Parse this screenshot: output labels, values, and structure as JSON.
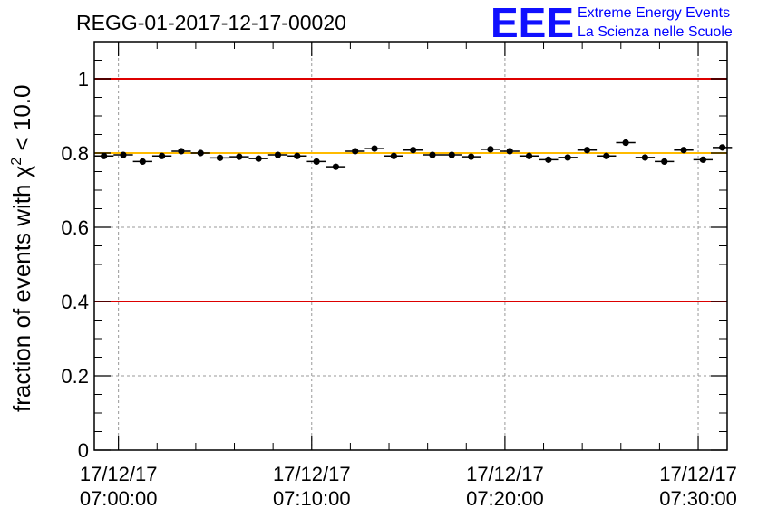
{
  "chart_data": {
    "type": "scatter",
    "title": "REGG-01-2017-12-17-00020",
    "xlabel": "",
    "ylabel_prefix": "fraction of events with ",
    "ylabel_symbol": "χ",
    "ylabel_superscript": "2",
    "ylabel_suffix": " < 10.0",
    "ylim": [
      0,
      1.1
    ],
    "xlim_minutes": [
      -1.25,
      31.5
    ],
    "yticks": [
      {
        "value": 0,
        "label": "0"
      },
      {
        "value": 0.2,
        "label": "0.2"
      },
      {
        "value": 0.4,
        "label": "0.4"
      },
      {
        "value": 0.6,
        "label": "0.6"
      },
      {
        "value": 0.8,
        "label": "0.8"
      },
      {
        "value": 1,
        "label": "1"
      }
    ],
    "xticks": [
      {
        "minute": 0,
        "date": "17/12/17",
        "time": "07:00:00"
      },
      {
        "minute": 10,
        "date": "17/12/17",
        "time": "07:10:00"
      },
      {
        "minute": 20,
        "date": "17/12/17",
        "time": "07:20:00"
      },
      {
        "minute": 30,
        "date": "17/12/17",
        "time": "07:30:00"
      }
    ],
    "grid": true,
    "reference_lines": [
      {
        "value": 1.0,
        "color": "#dd0000"
      },
      {
        "value": 0.4,
        "color": "#dd0000"
      },
      {
        "value": 0.8,
        "color": "#ffbb00"
      }
    ],
    "bin_width_minutes": 1,
    "series": [
      {
        "name": "fraction",
        "x_minutes": [
          -0.75,
          0.25,
          1.25,
          2.25,
          3.25,
          4.25,
          5.25,
          6.25,
          7.25,
          8.25,
          9.25,
          10.25,
          11.25,
          12.25,
          13.25,
          14.25,
          15.25,
          16.25,
          17.25,
          18.25,
          19.25,
          20.25,
          21.25,
          22.25,
          23.25,
          24.25,
          25.25,
          26.25,
          27.25,
          28.25,
          29.25,
          30.25,
          31.25
        ],
        "values": [
          0.792,
          0.795,
          0.777,
          0.792,
          0.805,
          0.8,
          0.787,
          0.79,
          0.785,
          0.795,
          0.792,
          0.777,
          0.763,
          0.805,
          0.812,
          0.792,
          0.808,
          0.795,
          0.795,
          0.79,
          0.81,
          0.805,
          0.792,
          0.782,
          0.788,
          0.808,
          0.792,
          0.828,
          0.788,
          0.777,
          0.808,
          0.782,
          0.815
        ]
      }
    ]
  },
  "logo": {
    "mark": "EEE",
    "line1": "Extreme Energy Events",
    "line2": "La Scienza nelle Scuole",
    "color": "#0000ff"
  }
}
